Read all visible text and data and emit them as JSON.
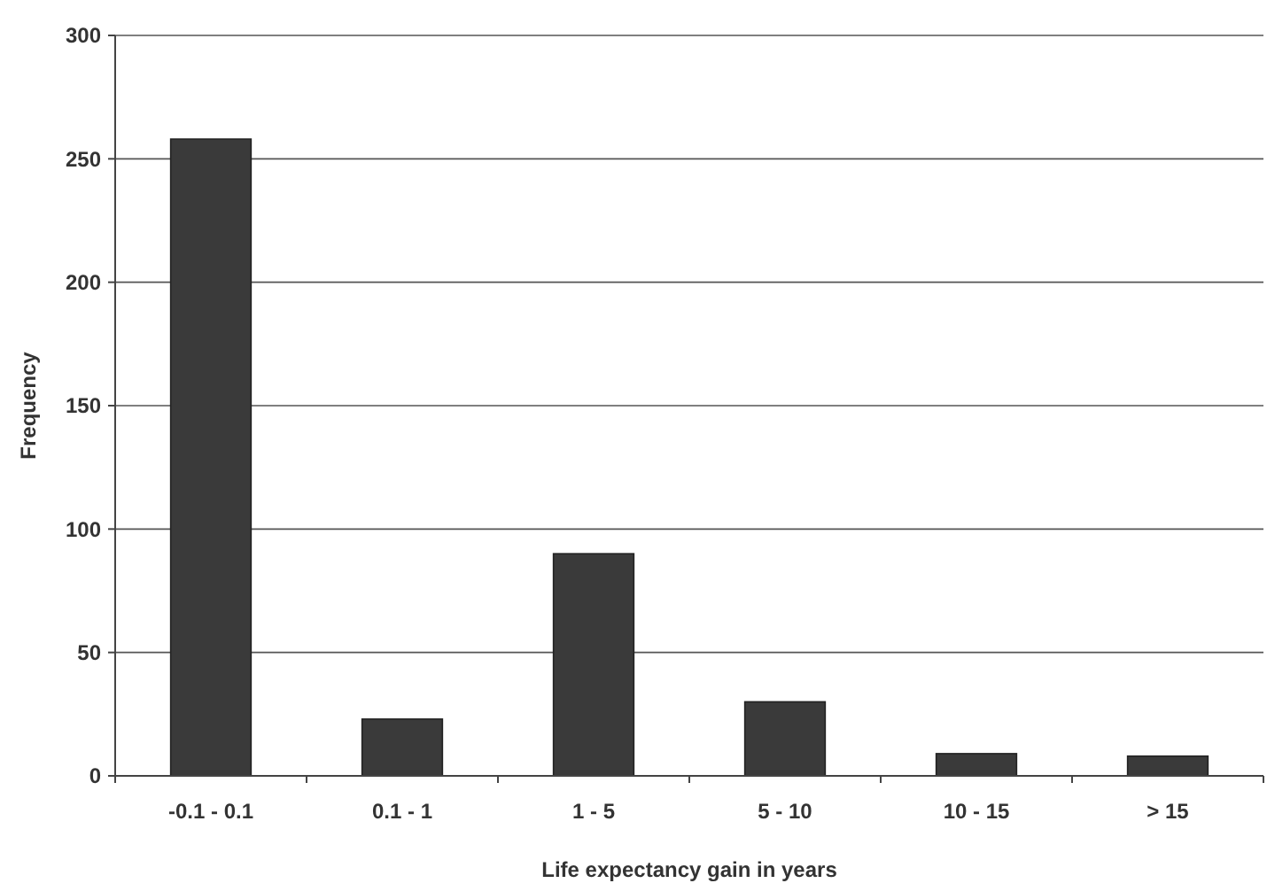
{
  "chart_data": {
    "type": "bar",
    "xlabel": "Life expectancy gain in years",
    "ylabel": "Frequency",
    "categories": [
      "-0.1 - 0.1",
      "0.1 - 1",
      "1 - 5",
      "5 - 10",
      "10 - 15",
      "> 15"
    ],
    "values": [
      258,
      23,
      90,
      30,
      9,
      8
    ],
    "color": "#3a3a3a",
    "ylim": [
      0,
      300
    ],
    "yticks": [
      0,
      50,
      100,
      150,
      200,
      250,
      300
    ],
    "grid": "y"
  }
}
